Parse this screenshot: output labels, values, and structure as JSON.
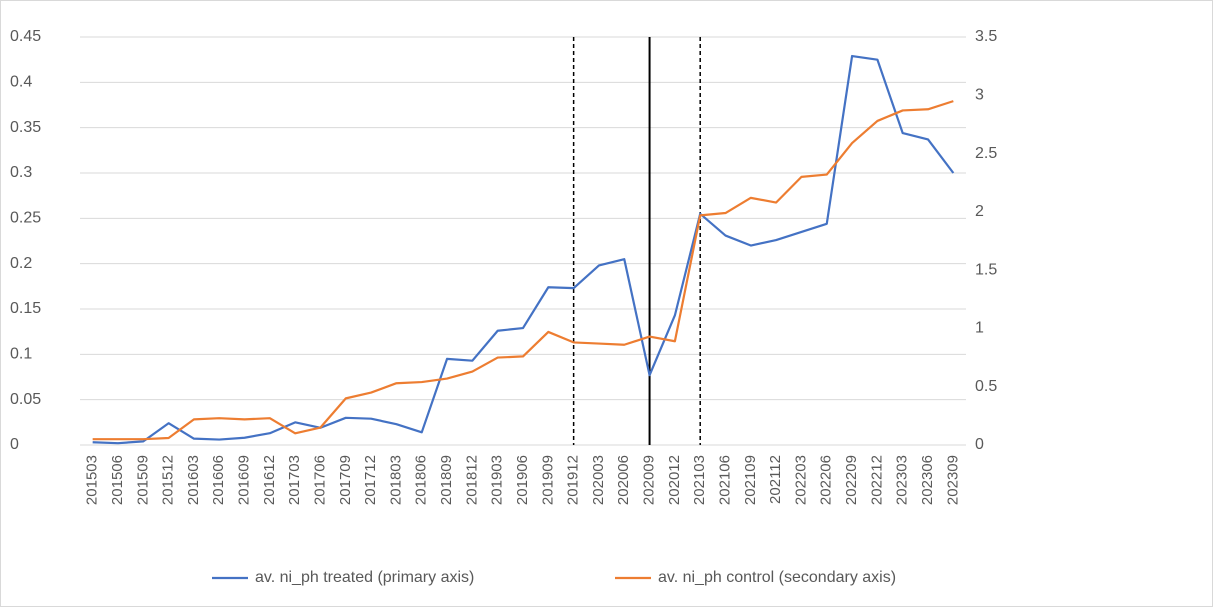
{
  "chart_data": {
    "type": "line",
    "categories": [
      "201503",
      "201506",
      "201509",
      "201512",
      "201603",
      "201606",
      "201609",
      "201612",
      "201703",
      "201706",
      "201709",
      "201712",
      "201803",
      "201806",
      "201809",
      "201812",
      "201903",
      "201906",
      "201909",
      "201912",
      "202003",
      "202006",
      "202009",
      "202012",
      "202103",
      "202106",
      "202109",
      "202112",
      "202203",
      "202206",
      "202209",
      "202212",
      "202303",
      "202306",
      "202309"
    ],
    "series": [
      {
        "name": "av. ni_ph treated (primary axis)",
        "color": "#4472c4",
        "values": [
          0.003,
          0.002,
          0.004,
          0.024,
          0.007,
          0.006,
          0.008,
          0.013,
          0.025,
          0.019,
          0.03,
          0.029,
          0.023,
          0.014,
          0.095,
          0.093,
          0.126,
          0.129,
          0.174,
          0.173,
          0.198,
          0.205,
          0.077,
          0.143,
          0.255,
          0.231,
          0.22,
          0.226,
          0.235,
          0.244,
          0.429,
          0.425,
          0.344,
          0.337,
          0.3
        ]
      },
      {
        "name": "av. ni_ph control (secondary axis)",
        "color": "#ed7d31",
        "axis": "y2",
        "values": [
          0.05,
          0.05,
          0.05,
          0.06,
          0.22,
          0.23,
          0.22,
          0.23,
          0.1,
          0.15,
          0.4,
          0.45,
          0.53,
          0.54,
          0.57,
          0.63,
          0.75,
          0.76,
          0.97,
          0.88,
          0.87,
          0.86,
          0.93,
          0.89,
          1.97,
          1.99,
          2.12,
          2.08,
          2.3,
          2.32,
          2.59,
          2.78,
          2.87,
          2.88,
          2.95
        ]
      }
    ],
    "ylim": [
      0,
      0.45
    ],
    "yticks": [
      0,
      0.05,
      0.1,
      0.15,
      0.2,
      0.25,
      0.3,
      0.35,
      0.4,
      0.45
    ],
    "y2lim": [
      0,
      3.5
    ],
    "y2ticks": [
      0,
      0.5,
      1,
      1.5,
      2,
      2.5,
      3,
      3.5
    ],
    "grid": true,
    "legend": "bottom",
    "vlines": [
      {
        "category": "201912",
        "style": "dashed"
      },
      {
        "category": "202009",
        "style": "solid"
      },
      {
        "category": "202103",
        "style": "dashed"
      }
    ]
  }
}
